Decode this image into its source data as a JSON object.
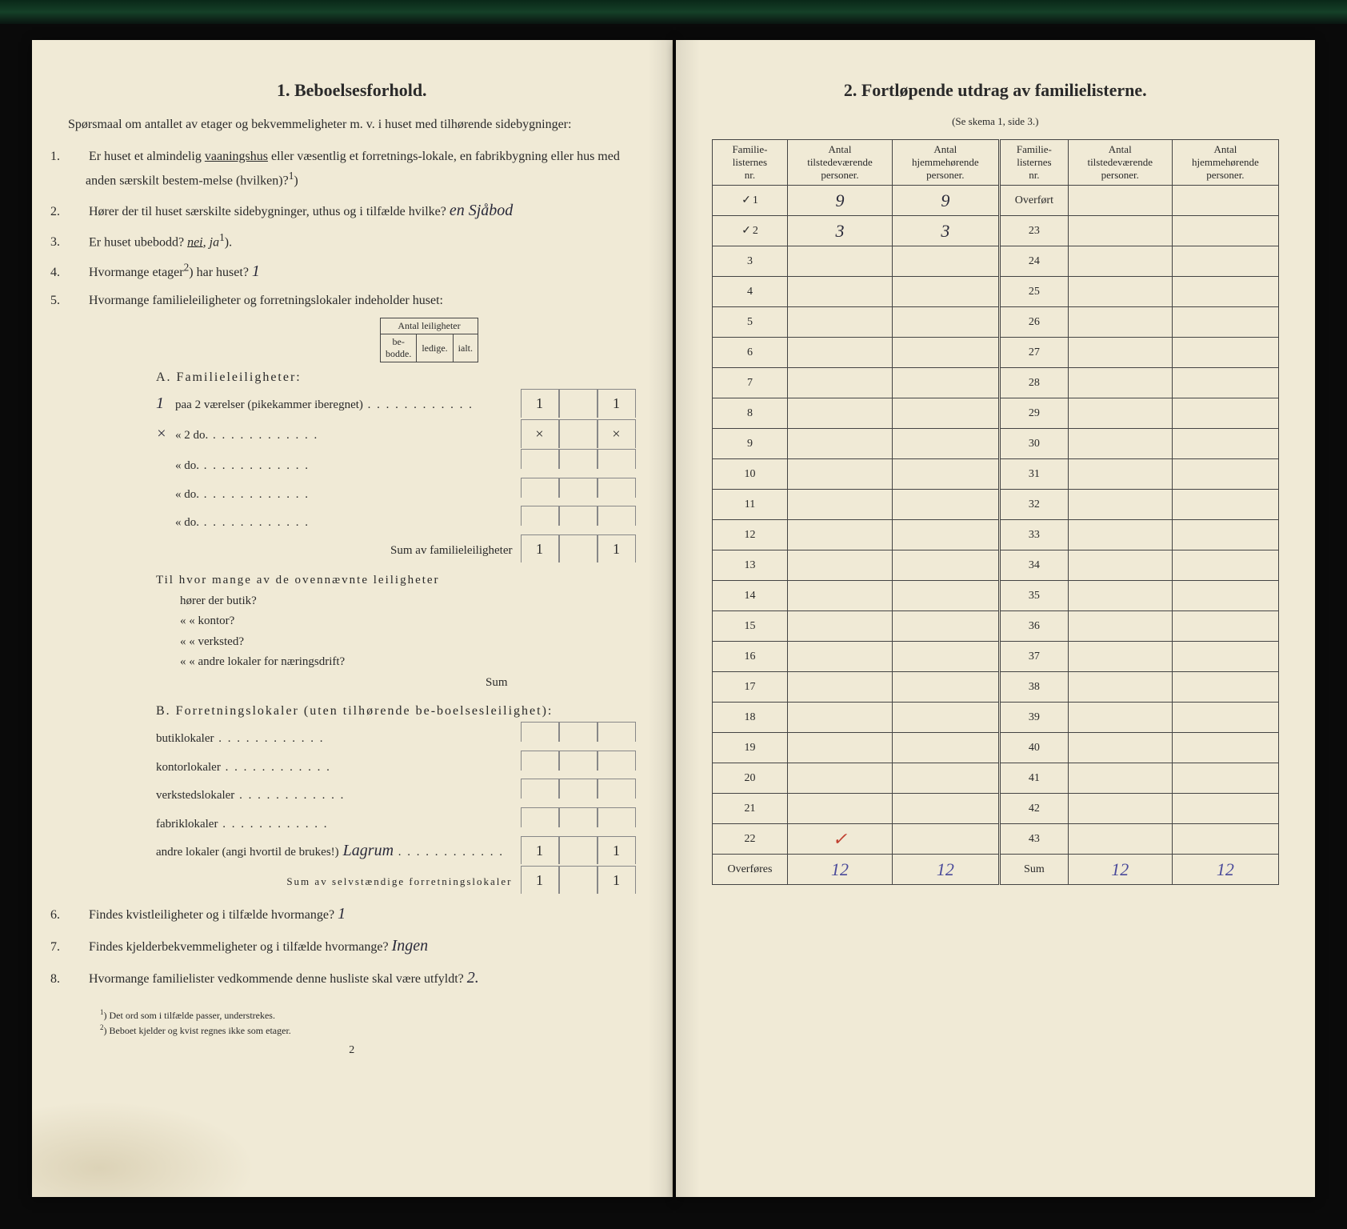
{
  "left": {
    "title": "1.   Beboelsesforhold.",
    "intro": "Spørsmaal om antallet av etager og bekvemmeligheter m. v. i huset med tilhørende sidebygninger:",
    "q1a": "Er huset et almindelig ",
    "q1u": "vaaningshus",
    "q1b": " eller væsentlig et forretnings-lokale, en fabrikbygning eller hus med anden særskilt bestem-melse (hvilken)?",
    "q1sup": "1",
    "q2a": "Hører der til huset særskilte sidebygninger, uthus og i tilfælde hvilke?",
    "q2hand": "en   Sjåbod",
    "q3a": "Er huset ubebodd?  ",
    "q3u": "nei",
    "q3b": ",  ja",
    "q3sup": "1",
    "q4a": "Hvormange etager",
    "q4sup": "2",
    "q4b": ") har huset?",
    "q4hand": "1",
    "q5": "Hvormange familieleiligheter og forretningslokaler indeholder huset:",
    "leil_header_title": "Antal leiligheter",
    "leil_cols": [
      "be-\nbodde.",
      "ledige.",
      "ialt."
    ],
    "sectA": "A. Familieleiligheter:",
    "a_rows": [
      {
        "lead": "1",
        "label": "paa  2   værelser (pikekammer iberegnet)",
        "c": [
          "1",
          "",
          "1"
        ]
      },
      {
        "lead": "×",
        "label": "«    2     do.",
        "c": [
          "×",
          "",
          "×"
        ]
      },
      {
        "lead": "",
        "label": "«          do.",
        "c": [
          "",
          "",
          ""
        ]
      },
      {
        "lead": "",
        "label": "«          do.",
        "c": [
          "",
          "",
          ""
        ]
      },
      {
        "lead": "",
        "label": "«          do.",
        "c": [
          "",
          "",
          ""
        ]
      }
    ],
    "a_sum_label": "Sum av familieleiligheter",
    "a_sum": [
      "1",
      "",
      "1"
    ],
    "a_extra_label": "Til hvor mange av de ovennævnte leiligheter",
    "a_extra_rows": [
      "hører der butik?",
      "«     «   kontor?",
      "«     «   verksted?",
      "«     «   andre lokaler for næringsdrift?"
    ],
    "a_extra_sum": "Sum",
    "sectB": "B. Forretningslokaler (uten tilhørende be-boelsesleilighet):",
    "b_rows": [
      {
        "label": "butiklokaler",
        "c": [
          "",
          "",
          ""
        ]
      },
      {
        "label": "kontorlokaler",
        "c": [
          "",
          "",
          ""
        ]
      },
      {
        "label": "verkstedslokaler",
        "c": [
          "",
          "",
          ""
        ]
      },
      {
        "label": "fabriklokaler",
        "c": [
          "",
          "",
          ""
        ]
      },
      {
        "label": "andre lokaler (angi hvortil de brukes!)",
        "hand": "Lagrum",
        "c": [
          "1",
          "",
          "1"
        ]
      }
    ],
    "b_sum_label": "Sum av selvstændige forretningslokaler",
    "b_sum": [
      "1",
      "",
      "1"
    ],
    "q6a": "Findes kvistleiligheter og i tilfælde hvormange?",
    "q6hand": "1",
    "q7a": "Findes kjelderbekvemmeligheter og i tilfælde hvormange?",
    "q7hand": "Ingen",
    "q8a": "Hvormange familielister vedkommende denne husliste skal være utfyldt?",
    "q8hand": "2.",
    "fn1": "Det ord som i tilfælde passer, understrekes.",
    "fn2": "Beboet kjelder og kvist regnes ikke som etager.",
    "pagenum": "2"
  },
  "right": {
    "title": "2.   Fortløpende utdrag av familielisterne.",
    "subtitle": "(Se skema 1, side 3.)",
    "cols": [
      "Familie-\nlisternes\nnr.",
      "Antal\ntilstedeværende\npersoner.",
      "Antal\nhjemmehørende\npersoner.",
      "Familie-\nlisternes\nnr.",
      "Antal\ntilstedeværende\npersoner.",
      "Antal\nhjemmehørende\npersoner."
    ],
    "rows_left": [
      {
        "n": "1",
        "check": true,
        "a": "9",
        "b": "9"
      },
      {
        "n": "2",
        "check": true,
        "a": "3",
        "b": "3"
      },
      {
        "n": "3"
      },
      {
        "n": "4"
      },
      {
        "n": "5"
      },
      {
        "n": "6"
      },
      {
        "n": "7"
      },
      {
        "n": "8"
      },
      {
        "n": "9"
      },
      {
        "n": "10"
      },
      {
        "n": "11"
      },
      {
        "n": "12"
      },
      {
        "n": "13"
      },
      {
        "n": "14"
      },
      {
        "n": "15"
      },
      {
        "n": "16"
      },
      {
        "n": "17"
      },
      {
        "n": "18"
      },
      {
        "n": "19"
      },
      {
        "n": "20"
      },
      {
        "n": "21"
      },
      {
        "n": "22",
        "red": true
      }
    ],
    "rows_right_first": "Overført",
    "rows_right": [
      "23",
      "24",
      "25",
      "26",
      "27",
      "28",
      "29",
      "30",
      "31",
      "32",
      "33",
      "34",
      "35",
      "36",
      "37",
      "38",
      "39",
      "40",
      "41",
      "42",
      "43"
    ],
    "overfores_label": "Overføres",
    "overfores": [
      "12",
      "12"
    ],
    "sum_label": "Sum",
    "sum": [
      "12",
      "12"
    ]
  }
}
